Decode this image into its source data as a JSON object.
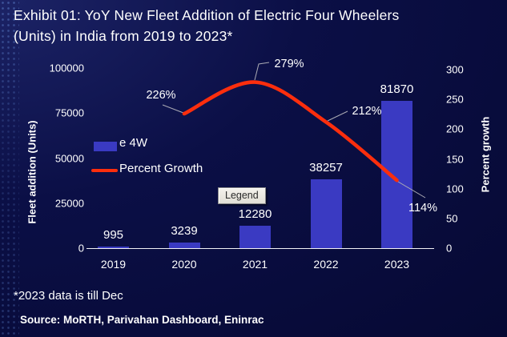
{
  "title": {
    "line1": "Exhibit 01: YoY New Fleet Addition of Electric Four Wheelers",
    "line2": "(Units) in India from 2019 to 2023*"
  },
  "legend": {
    "bar_label": "e 4W",
    "line_label": "Percent Growth"
  },
  "tooltip": "Legend",
  "axes": {
    "left_title": "Fleet addition (Units)",
    "right_title": "Percent growth",
    "left_ticks": [
      "100000",
      "75000",
      "50000",
      "25000",
      "0"
    ],
    "right_ticks": [
      "300",
      "250",
      "200",
      "150",
      "100",
      "50",
      "0"
    ],
    "x_ticks": [
      "2019",
      "2020",
      "2021",
      "2022",
      "2023"
    ]
  },
  "chart_data": {
    "type": "bar",
    "title": "Exhibit 01: YoY New Fleet Addition of Electric Four Wheelers (Units) in India from 2019 to 2023*",
    "categories": [
      "2019",
      "2020",
      "2021",
      "2022",
      "2023"
    ],
    "series": [
      {
        "name": "e 4W",
        "type": "bar",
        "axis": "left",
        "values": [
          995,
          3239,
          12280,
          38257,
          81870
        ]
      },
      {
        "name": "Percent Growth",
        "type": "line",
        "axis": "right",
        "values": [
          null,
          226,
          279,
          212,
          114
        ]
      }
    ],
    "bar_labels": [
      "995",
      "3239",
      "12280",
      "38257",
      "81870"
    ],
    "growth_labels": [
      "226%",
      "279%",
      "212%",
      "114%"
    ],
    "left_axis": {
      "label": "Fleet addition (Units)",
      "range": [
        0,
        100000
      ]
    },
    "right_axis": {
      "label": "Percent growth",
      "range": [
        0,
        300
      ]
    },
    "legend_position": "left-middle",
    "grid": false
  },
  "colors": {
    "background": "#0a0e44",
    "bar": "#3a3ac2",
    "line": "#fc2e0d",
    "text": "#ffffff",
    "leader": "#aaaab4",
    "tooltip_bg": "#ece9e1"
  },
  "footnote": "*2023 data is till Dec",
  "source": "Source:  MoRTH, Parivahan Dashboard, Eninrac"
}
